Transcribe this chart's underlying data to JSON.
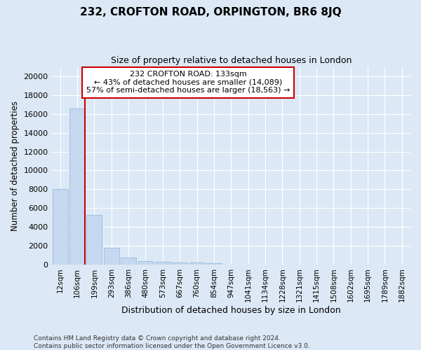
{
  "title": "232, CROFTON ROAD, ORPINGTON, BR6 8JQ",
  "subtitle": "Size of property relative to detached houses in London",
  "xlabel": "Distribution of detached houses by size in London",
  "ylabel": "Number of detached properties",
  "bar_color": "#c5d8f0",
  "bar_edge_color": "#8ab4d8",
  "categories": [
    "12sqm",
    "106sqm",
    "199sqm",
    "293sqm",
    "386sqm",
    "480sqm",
    "573sqm",
    "667sqm",
    "760sqm",
    "854sqm",
    "947sqm",
    "1041sqm",
    "1134sqm",
    "1228sqm",
    "1321sqm",
    "1415sqm",
    "1508sqm",
    "1602sqm",
    "1695sqm",
    "1789sqm",
    "1882sqm"
  ],
  "values": [
    8050,
    16600,
    5300,
    1750,
    750,
    370,
    290,
    210,
    210,
    150,
    0,
    0,
    0,
    0,
    0,
    0,
    0,
    0,
    0,
    0,
    0
  ],
  "ylim": [
    0,
    21000
  ],
  "yticks": [
    0,
    2000,
    4000,
    6000,
    8000,
    10000,
    12000,
    14000,
    16000,
    18000,
    20000
  ],
  "annotation_title": "232 CROFTON ROAD: 133sqm",
  "annotation_line1": "← 43% of detached houses are smaller (14,089)",
  "annotation_line2": "57% of semi-detached houses are larger (18,563) →",
  "footnote1": "Contains HM Land Registry data © Crown copyright and database right 2024.",
  "footnote2": "Contains public sector information licensed under the Open Government Licence v3.0.",
  "background_color": "#dce8f5",
  "plot_bg_color": "#dce8f5",
  "grid_color": "#ffffff",
  "annotation_box_color": "#ffffff",
  "annotation_box_edge_color": "#cc0000",
  "vline_color": "#cc0000",
  "vline_x_index": 1,
  "title_fontsize": 11,
  "subtitle_fontsize": 9
}
